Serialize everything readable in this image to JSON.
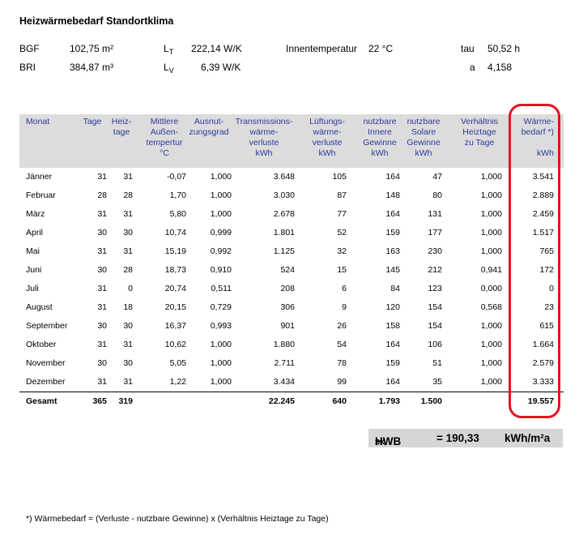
{
  "title": "Heizwärmebedarf Standortklima",
  "params": {
    "bgf_label": "BGF",
    "bgf_value": "102,75 m²",
    "bri_label": "BRI",
    "bri_value": "384,87 m³",
    "lt_label_main": "L",
    "lt_label_sub": "T",
    "lt_value": "222,14 W/K",
    "lv_label_main": "L",
    "lv_label_sub": "V",
    "lv_value": "6,39 W/K",
    "innen_label": "Innentemperatur",
    "innen_value": "22 °C",
    "tau_label": "tau",
    "tau_value": "50,52 h",
    "a_label": "a",
    "a_value": "4,158"
  },
  "table": {
    "headers": [
      "Monat",
      "Tage",
      "Heiz-\ntage",
      "Mittlere\nAußen-\ntempertur\n°C",
      "Ausnut-\nzungsgrad",
      "Transmissions-\nwärme-\nverluste\nkWh",
      "Lüftungs-\nwärme-\nverluste\nkWh",
      "nutzbare\nInnere\nGewinne\nkWh",
      "nutzbare\nSolare\nGewinne\nkWh",
      "Verhältnis\nHeiztage\nzu Tage",
      "Wärme-\nbedarf *)\n\nkWh"
    ],
    "rows": [
      [
        "Jänner",
        "31",
        "31",
        "-0,07",
        "1,000",
        "3.648",
        "105",
        "164",
        "47",
        "1,000",
        "3.541"
      ],
      [
        "Februar",
        "28",
        "28",
        "1,70",
        "1,000",
        "3.030",
        "87",
        "148",
        "80",
        "1,000",
        "2.889"
      ],
      [
        "März",
        "31",
        "31",
        "5,80",
        "1,000",
        "2.678",
        "77",
        "164",
        "131",
        "1,000",
        "2.459"
      ],
      [
        "April",
        "30",
        "30",
        "10,74",
        "0,999",
        "1.801",
        "52",
        "159",
        "177",
        "1,000",
        "1.517"
      ],
      [
        "Mai",
        "31",
        "31",
        "15,19",
        "0,992",
        "1.125",
        "32",
        "163",
        "230",
        "1,000",
        "765"
      ],
      [
        "Juni",
        "30",
        "28",
        "18,73",
        "0,910",
        "524",
        "15",
        "145",
        "212",
        "0,941",
        "172"
      ],
      [
        "Juli",
        "31",
        "0",
        "20,74",
        "0,511",
        "208",
        "6",
        "84",
        "123",
        "0,000",
        "0"
      ],
      [
        "August",
        "31",
        "18",
        "20,15",
        "0,729",
        "306",
        "9",
        "120",
        "154",
        "0,568",
        "23"
      ],
      [
        "September",
        "30",
        "30",
        "16,37",
        "0,993",
        "901",
        "26",
        "158",
        "154",
        "1,000",
        "615"
      ],
      [
        "Oktober",
        "31",
        "31",
        "10,62",
        "1,000",
        "1.880",
        "54",
        "164",
        "106",
        "1,000",
        "1.664"
      ],
      [
        "November",
        "30",
        "30",
        "5,05",
        "1,000",
        "2.711",
        "78",
        "159",
        "51",
        "1,000",
        "2.579"
      ],
      [
        "Dezember",
        "31",
        "31",
        "1,22",
        "1,000",
        "3.434",
        "99",
        "164",
        "35",
        "1,000",
        "3.333"
      ]
    ],
    "total": [
      "Gesamt",
      "365",
      "319",
      "",
      "",
      "22.245",
      "640",
      "1.793",
      "1.500",
      "",
      "19.557"
    ]
  },
  "hwb": {
    "label_main": "HWB",
    "label_sub": "SK",
    "equals_value": "= 190,33",
    "unit": "kWh/m²a"
  },
  "footnote": "*) Wärmebedarf = (Verluste - nutzbare Gewinne) x (Verhältnis Heiztage zu Tage)",
  "colors": {
    "header_text": "#2c3a9e",
    "header_bg": "#dcdcdc",
    "highlight": "#e5121e",
    "hwb_bg": "#d6d6d6"
  }
}
